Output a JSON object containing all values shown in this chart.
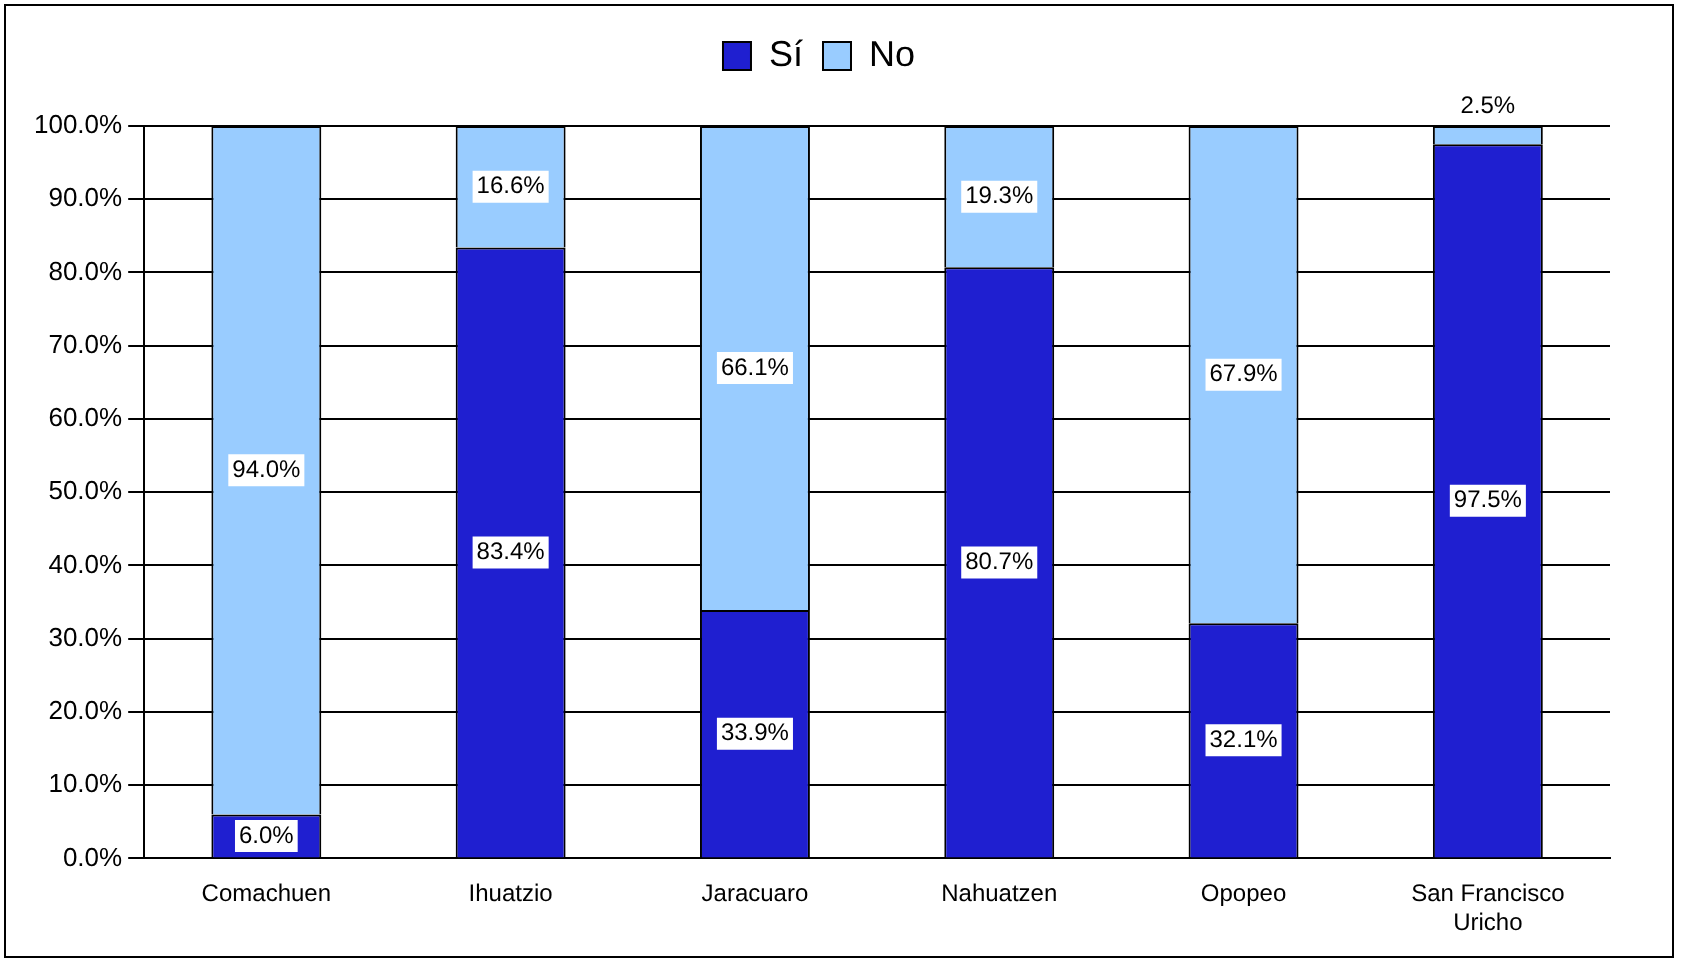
{
  "chart_data": {
    "type": "bar",
    "stacked": true,
    "categories": [
      "Comachuen",
      "Ihuatzio",
      "Jaracuaro",
      "Nahuatzen",
      "Opopeo",
      "San Francisco Uricho"
    ],
    "series": [
      {
        "name": "Sí",
        "color": "#1f1fd0",
        "values": [
          6.0,
          83.4,
          33.9,
          80.7,
          32.1,
          97.5
        ],
        "value_labels": [
          "6.0%",
          "83.4%",
          "33.9%",
          "80.7%",
          "32.1%",
          "97.5%"
        ]
      },
      {
        "name": "No",
        "color": "#99ccff",
        "values": [
          94.0,
          16.6,
          66.1,
          19.3,
          67.9,
          2.5
        ],
        "value_labels": [
          "94.0%",
          "16.6%",
          "66.1%",
          "19.3%",
          "67.9%",
          "2.5%"
        ]
      }
    ],
    "ylim": [
      0,
      100
    ],
    "yticks": [
      {
        "value": 0,
        "label": "0.0%"
      },
      {
        "value": 10,
        "label": "10.0%"
      },
      {
        "value": 20,
        "label": "20.0%"
      },
      {
        "value": 30,
        "label": "30.0%"
      },
      {
        "value": 40,
        "label": "40.0%"
      },
      {
        "value": 50,
        "label": "50.0%"
      },
      {
        "value": 60,
        "label": "60.0%"
      },
      {
        "value": 70,
        "label": "70.0%"
      },
      {
        "value": 80,
        "label": "80.0%"
      },
      {
        "value": 90,
        "label": "90.0%"
      },
      {
        "value": 100,
        "label": "100.0%"
      }
    ],
    "grid": "y",
    "legend": "top"
  }
}
